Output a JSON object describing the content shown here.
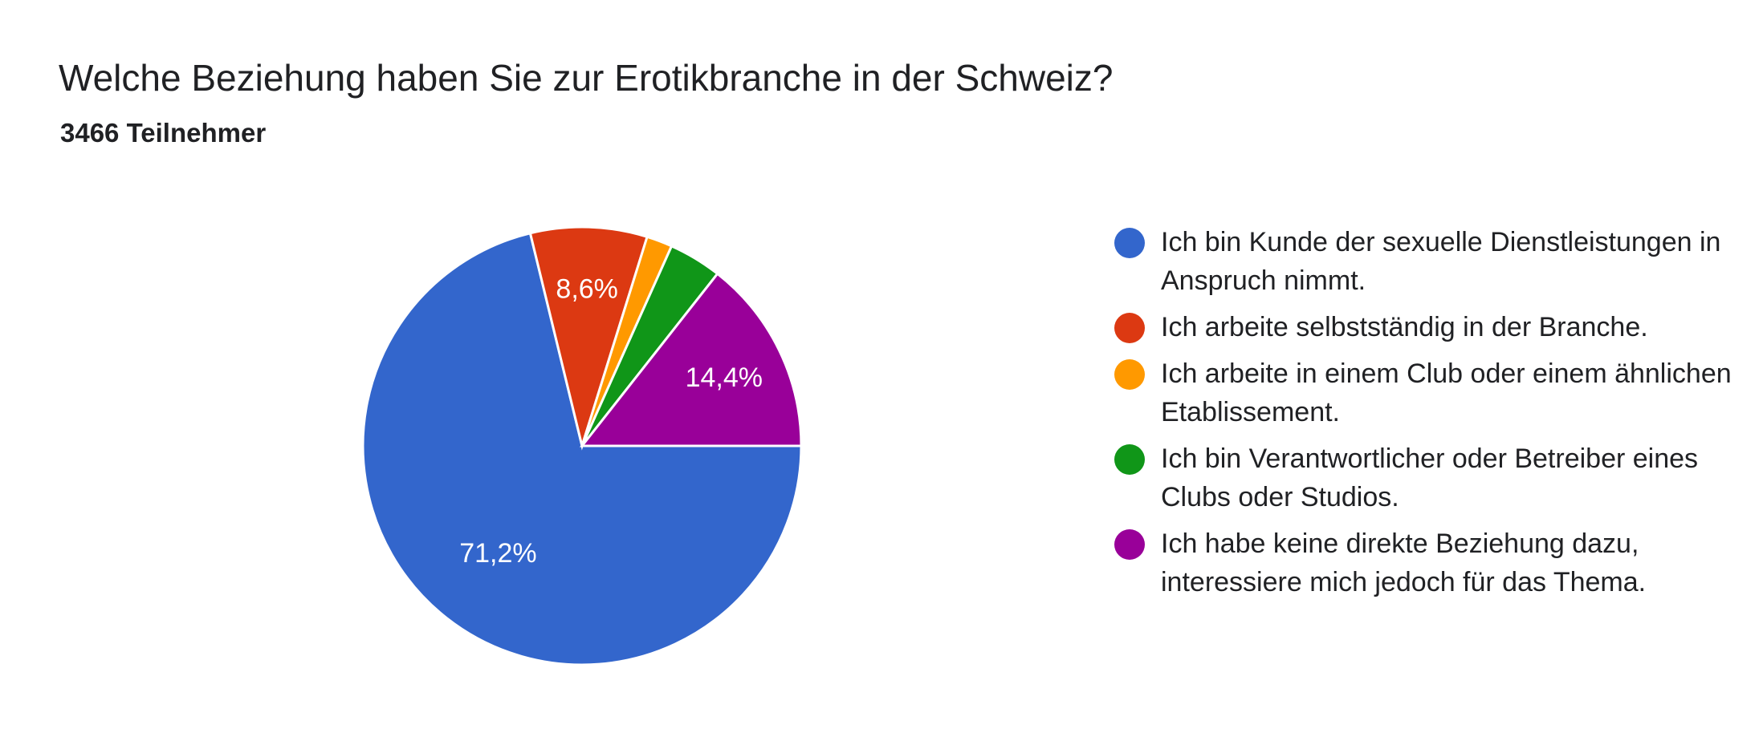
{
  "title": "Welche Beziehung haben Sie zur Erotikbranche in der Schweiz?",
  "subtitle": "3466 Teilnehmer",
  "chart_data": {
    "type": "pie",
    "series": [
      {
        "name": "Ich bin Kunde der sexuelle Dienstleistungen in Anspruch nimmt.",
        "value": 71.2,
        "label": "71,2%",
        "color": "#3366cc"
      },
      {
        "name": "Ich arbeite selbstständig in der Branche.",
        "value": 8.6,
        "label": "8,6%",
        "color": "#dc3912"
      },
      {
        "name": "Ich arbeite in einem Club oder einem ähnlichen Etablissement.",
        "value": 1.9,
        "label": "",
        "color": "#ff9900"
      },
      {
        "name": "Ich bin Verantwortlicher oder Betreiber eines Clubs oder Studios.",
        "value": 3.9,
        "label": "",
        "color": "#109618"
      },
      {
        "name": "Ich habe keine direkte Beziehung dazu, interessiere mich jedoch für das Thema.",
        "value": 14.4,
        "label": "14,4%",
        "color": "#990099"
      }
    ],
    "legend_position": "right"
  }
}
